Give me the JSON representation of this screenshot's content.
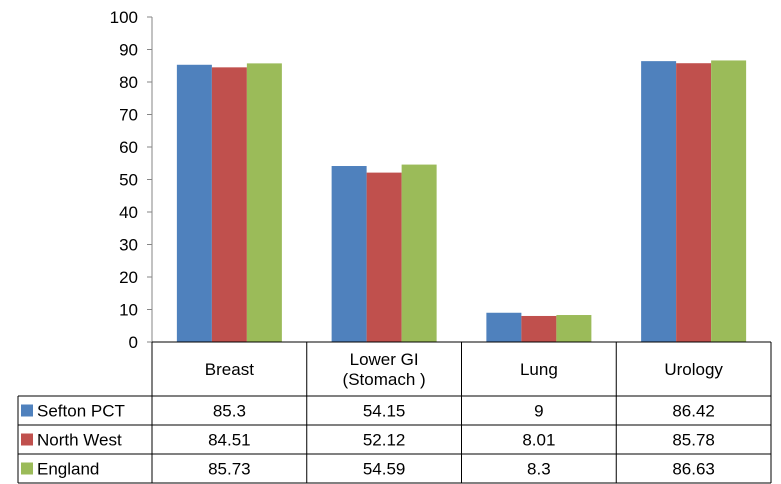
{
  "chart_data": {
    "type": "bar",
    "title": "",
    "xlabel": "",
    "ylabel": "",
    "ylim": [
      0,
      100
    ],
    "yticks": [
      0,
      10,
      20,
      30,
      40,
      50,
      60,
      70,
      80,
      90,
      100
    ],
    "grid": false,
    "legend": "data-table",
    "categories": [
      "Breast",
      "Lower GI\n(Stomach )",
      "Lung",
      "Urology"
    ],
    "series": [
      {
        "name": "Sefton PCT",
        "color": "#4F81BD",
        "values": [
          85.3,
          54.15,
          9,
          86.42
        ],
        "labels": [
          "85.3",
          "54.15",
          "9",
          "86.42"
        ]
      },
      {
        "name": "North West",
        "color": "#C0504D",
        "values": [
          84.51,
          52.12,
          8.01,
          85.78
        ],
        "labels": [
          "84.51",
          "52.12",
          "8.01",
          "85.78"
        ]
      },
      {
        "name": "England",
        "color": "#9BBB59",
        "values": [
          85.73,
          54.59,
          8.3,
          86.63
        ],
        "labels": [
          "85.73",
          "54.59",
          "8.3",
          "86.63"
        ]
      }
    ]
  }
}
